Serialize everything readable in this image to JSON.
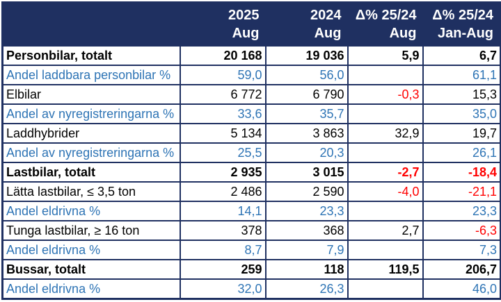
{
  "colors": {
    "navy": "#1F3061",
    "blue": "#2E74B5",
    "red": "#FF0000",
    "white": "#FFFFFF",
    "black": "#000000"
  },
  "table": {
    "columns": [
      {
        "year": "2025",
        "period": "Aug"
      },
      {
        "year": "2024",
        "period": "Aug"
      },
      {
        "year": "Δ% 25/24",
        "period": "Aug"
      },
      {
        "year": "Δ% 25/24",
        "period": "Jan-Aug"
      }
    ],
    "rows": [
      {
        "style": "section",
        "label": "Personbilar, totalt",
        "values": [
          "20 168",
          "19 036",
          "5,9",
          "6,7"
        ]
      },
      {
        "style": "share",
        "label": "Andel laddbara personbilar %",
        "values": [
          "59,0",
          "56,0",
          "",
          "61,1"
        ]
      },
      {
        "style": "normal",
        "label": "Elbilar",
        "values": [
          "6 772",
          "6 790",
          "-0,3",
          "15,3"
        ]
      },
      {
        "style": "share",
        "label": "Andel av nyregistreringarna %",
        "values": [
          "33,6",
          "35,7",
          "",
          "35,0"
        ]
      },
      {
        "style": "normal",
        "label": "Laddhybrider",
        "values": [
          "5 134",
          "3 863",
          "32,9",
          "19,7"
        ]
      },
      {
        "style": "share",
        "label": "Andel av nyregistreringarna %",
        "values": [
          "25,5",
          "20,3",
          "",
          "26,1"
        ]
      },
      {
        "style": "section",
        "label": "Lastbilar, totalt",
        "values": [
          "2 935",
          "3 015",
          "-2,7",
          "-18,4"
        ]
      },
      {
        "style": "normal",
        "label": "Lätta lastbilar, ≤ 3,5 ton",
        "values": [
          "2 486",
          "2 590",
          "-4,0",
          "-21,1"
        ]
      },
      {
        "style": "share",
        "label": "Andel eldrivna %",
        "values": [
          "14,1",
          "23,3",
          "",
          "23,3"
        ]
      },
      {
        "style": "normal",
        "label": "Tunga lastbilar, ≥ 16 ton",
        "values": [
          "378",
          "368",
          "2,7",
          "-6,3"
        ]
      },
      {
        "style": "share",
        "label": "Andel eldrivna %",
        "values": [
          "8,7",
          "7,9",
          "",
          "7,3"
        ]
      },
      {
        "style": "section",
        "label": "Bussar, totalt",
        "values": [
          "259",
          "118",
          "119,5",
          "206,7"
        ]
      },
      {
        "style": "share",
        "label": "Andel eldrivna %",
        "values": [
          "32,0",
          "26,3",
          "",
          "46,0"
        ]
      }
    ]
  },
  "chart_data": {
    "type": "table",
    "title": "",
    "columns": [
      "",
      "2025 Aug",
      "2024 Aug",
      "Δ% 25/24 Aug",
      "Δ% 25/24 Jan-Aug"
    ],
    "rows": [
      [
        "Personbilar, totalt",
        20168,
        19036,
        5.9,
        6.7
      ],
      [
        "Andel laddbara personbilar %",
        59.0,
        56.0,
        null,
        61.1
      ],
      [
        "Elbilar",
        6772,
        6790,
        -0.3,
        15.3
      ],
      [
        "Andel av nyregistreringarna %",
        33.6,
        35.7,
        null,
        35.0
      ],
      [
        "Laddhybrider",
        5134,
        3863,
        32.9,
        19.7
      ],
      [
        "Andel av nyregistreringarna %",
        25.5,
        20.3,
        null,
        26.1
      ],
      [
        "Lastbilar, totalt",
        2935,
        3015,
        -2.7,
        -18.4
      ],
      [
        "Lätta lastbilar, ≤ 3,5 ton",
        2486,
        2590,
        -4.0,
        -21.1
      ],
      [
        "Andel eldrivna %",
        14.1,
        23.3,
        null,
        23.3
      ],
      [
        "Tunga lastbilar, ≥ 16 ton",
        378,
        368,
        2.7,
        -6.3
      ],
      [
        "Andel eldrivna %",
        8.7,
        7.9,
        null,
        7.3
      ],
      [
        "Bussar, totalt",
        259,
        118,
        119.5,
        206.7
      ],
      [
        "Andel eldrivna %",
        32.0,
        26.3,
        null,
        46.0
      ]
    ]
  }
}
